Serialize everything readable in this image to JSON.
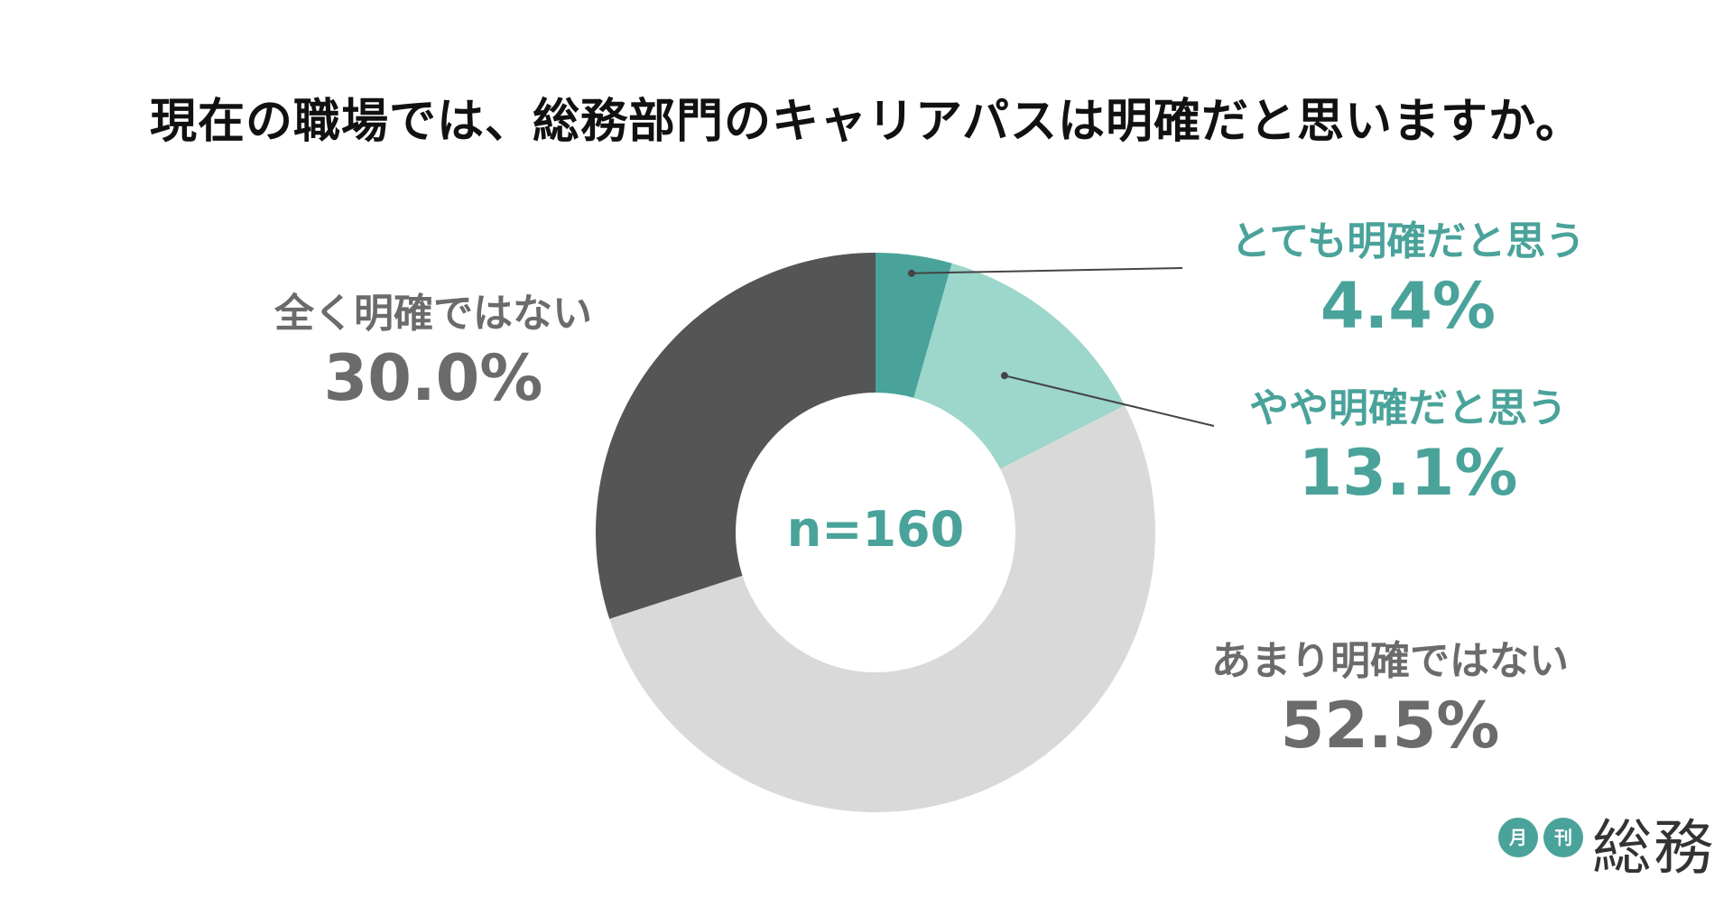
{
  "title": "現在の職場では、総務部門のキャリアパスは明確だと思いますか。",
  "chart_data": {
    "type": "pie",
    "donut": true,
    "center_text": "n=160",
    "title": "現在の職場では、総務部門のキャリアパスは明確だと思いますか。",
    "unit": "%",
    "slices": [
      {
        "label": "とても明確だと思う",
        "value": 4.4,
        "value_text": "4.4%",
        "color": "#4aa39a",
        "label_color": "#4aa39a"
      },
      {
        "label": "やや明確だと思う",
        "value": 13.1,
        "value_text": "13.1%",
        "color": "#9dd6cb",
        "label_color": "#4aa39a"
      },
      {
        "label": "あまり明確ではない",
        "value": 52.5,
        "value_text": "52.5%",
        "color": "#d9d9d9",
        "label_color": "#6b6b6b"
      },
      {
        "label": "全く明確ではない",
        "value": 30.0,
        "value_text": "30.0%",
        "color": "#555555",
        "label_color": "#6b6b6b"
      }
    ],
    "start_angle": "12 o'clock",
    "direction": "clockwise",
    "legend": "none"
  },
  "colors": {
    "teal": "#4aa39a",
    "light_teal": "#9dd6cb",
    "light_gray": "#d9d9d9",
    "dark_gray": "#555555",
    "label_gray": "#6b6b6b",
    "title": "#111111",
    "leader_line": "#444444"
  },
  "logo": {
    "badge1": "月",
    "badge2": "刊",
    "word": "総務"
  }
}
